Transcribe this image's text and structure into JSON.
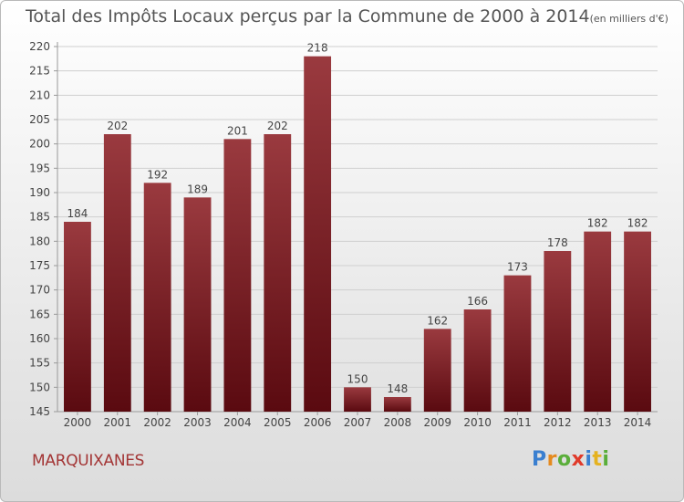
{
  "chart_data": {
    "type": "bar",
    "title": "Total des Impôts Locaux perçus par la Commune de 2000 à 2014",
    "unit_note": "(en milliers d'€)",
    "categories": [
      "2000",
      "2001",
      "2002",
      "2003",
      "2004",
      "2005",
      "2006",
      "2007",
      "2008",
      "2009",
      "2010",
      "2011",
      "2012",
      "2013",
      "2014"
    ],
    "values": [
      184,
      202,
      192,
      189,
      201,
      202,
      218,
      150,
      148,
      162,
      166,
      173,
      178,
      182,
      182
    ],
    "ylim": [
      145,
      220
    ],
    "yticks": [
      145,
      150,
      155,
      160,
      165,
      170,
      175,
      180,
      185,
      190,
      195,
      200,
      205,
      210,
      215,
      220
    ],
    "xlabel": "",
    "ylabel": "",
    "grid": true,
    "bar_color": "#7a1c22",
    "bar_color_light": "#9a3a3f",
    "bar_color_dark": "#5a0a10"
  },
  "commune": "MARQUIXANES",
  "logo": {
    "letters": [
      "P",
      "r",
      "o",
      "x",
      "i",
      "t",
      "i"
    ],
    "colors": [
      "#3a7fd0",
      "#e58a1f",
      "#5aae3a",
      "#e03a2a",
      "#3a7fd0",
      "#e5b21f",
      "#5aae3a"
    ]
  }
}
